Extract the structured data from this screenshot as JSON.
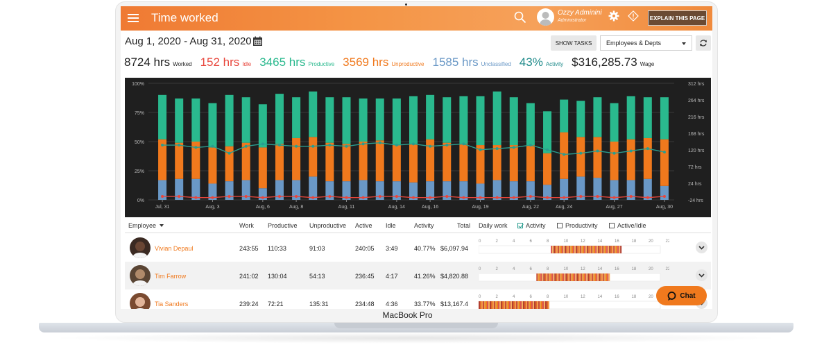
{
  "device_label": "MacBook Pro",
  "header": {
    "title": "Time worked",
    "user_name": "Ozzy Adminini",
    "user_role": "Administrator",
    "explain_label": "EXPLAIN THIS PAGE"
  },
  "toolbar": {
    "date_range": "Aug 1, 2020 - Aug 31, 2020",
    "show_tasks": "SHOW TASKS",
    "group_select": "Employees & Depts"
  },
  "summary": {
    "worked": {
      "value": "8724 hrs",
      "label": "Worked",
      "color": "#222222"
    },
    "idle": {
      "value": "152 hrs",
      "label": "Idle",
      "color": "#e8463c"
    },
    "productive": {
      "value": "3465 hrs",
      "label": "Productive",
      "color": "#2ab98e"
    },
    "unproductive": {
      "value": "3569 hrs",
      "label": "Unproductive",
      "color": "#f0791d"
    },
    "unclassified": {
      "value": "1585 hrs",
      "label": "Unclassified",
      "color": "#6a98c6"
    },
    "activity": {
      "value": "43%",
      "label": "Activity",
      "color": "#1e8a8a"
    },
    "wage": {
      "value": "$316,285.73",
      "label": "Wage",
      "color": "#222222"
    }
  },
  "chart_data": {
    "type": "bar",
    "stacked": true,
    "left_axis": {
      "ticks": [
        "100%",
        "75%",
        "50%",
        "25%",
        "0%"
      ],
      "range": [
        0,
        100
      ]
    },
    "right_axis": {
      "ticks": [
        "312 hrs",
        "264 hrs",
        "216 hrs",
        "168 hrs",
        "120 hrs",
        "72 hrs",
        "24 hrs",
        "-24 hrs"
      ],
      "range": [
        -24,
        312
      ]
    },
    "x_tick_labels": [
      "Jul, 31",
      "Aug, 3",
      "Aug, 6",
      "Aug, 8",
      "Aug, 11",
      "Aug, 14",
      "Aug, 16",
      "Aug, 19",
      "Aug, 22",
      "Aug, 24",
      "Aug, 27",
      "Aug, 30"
    ],
    "series": [
      {
        "name": "Unclassified",
        "color": "#6a98c6",
        "values": [
          17,
          18,
          18,
          14,
          16,
          17,
          10,
          17,
          17,
          20,
          16,
          16,
          17,
          16,
          16,
          15,
          16,
          16,
          16,
          14,
          17,
          16,
          16,
          13,
          18,
          20,
          19,
          17,
          17,
          18,
          12
        ]
      },
      {
        "name": "Unproductive",
        "color": "#f0791d",
        "values": [
          35,
          31,
          32,
          31,
          30,
          32,
          35,
          31,
          36,
          34,
          33,
          32,
          33,
          35,
          31,
          33,
          36,
          33,
          32,
          33,
          30,
          31,
          31,
          27,
          40,
          34,
          35,
          33,
          35,
          35,
          40
        ]
      },
      {
        "name": "Productive",
        "color": "#2ab98e",
        "values": [
          38,
          38,
          37,
          38,
          44,
          39,
          37,
          43,
          35,
          39,
          39,
          40,
          37,
          36,
          40,
          41,
          38,
          39,
          41,
          42,
          46,
          41,
          36,
          36,
          28,
          31,
          34,
          33,
          37,
          35,
          36
        ]
      },
      {
        "name": "Activity",
        "color": "#2a9d8f",
        "type": "line",
        "values": [
          47,
          47,
          45,
          46,
          40,
          46,
          48,
          47,
          46,
          46,
          47,
          46,
          48,
          49,
          47,
          48,
          46,
          47,
          48,
          43,
          44,
          45,
          47,
          43,
          39,
          40,
          42,
          40,
          42,
          44,
          41
        ]
      },
      {
        "name": "Idle",
        "color": "#e8463c",
        "type": "line",
        "values": [
          3,
          3,
          2,
          2,
          3,
          3,
          2,
          3,
          3,
          2,
          3,
          2,
          2,
          3,
          3,
          2,
          2,
          3,
          2,
          2,
          2,
          2,
          3,
          2,
          2,
          3,
          3,
          2,
          3,
          2,
          3
        ]
      }
    ]
  },
  "table": {
    "columns": [
      "Employee",
      "Work",
      "Productive",
      "Unproductive",
      "Active",
      "Idle",
      "Activity",
      "Total",
      "Daily work"
    ],
    "toggles": [
      {
        "label": "Activity",
        "checked": true
      },
      {
        "label": "Productivity",
        "checked": false
      },
      {
        "label": "Active/Idle",
        "checked": false
      }
    ],
    "hour_ticks": [
      "0",
      "2",
      "4",
      "6",
      "8",
      "10",
      "12",
      "14",
      "16",
      "18",
      "20",
      "22"
    ],
    "rows": [
      {
        "name": "Vivian Depaul",
        "work": "243:55",
        "productive": "110:33",
        "unproductive": "91:03",
        "active": "240:05",
        "idle": "3:49",
        "activity": "40.77%",
        "total": "$6,097.94",
        "span": [
          8.5,
          16.8
        ]
      },
      {
        "name": "Tim Farrow",
        "work": "241:02",
        "productive": "130:04",
        "unproductive": "54:13",
        "active": "236:45",
        "idle": "4:17",
        "activity": "41.26%",
        "total": "$4,820.88",
        "span": [
          6.8,
          15.3
        ]
      },
      {
        "name": "Tia Sanders",
        "work": "239:24",
        "productive": "72:21",
        "unproductive": "135:31",
        "active": "234:48",
        "idle": "4:36",
        "activity": "33.77%",
        "total": "$13,167.4",
        "span": [
          0,
          8.3
        ]
      }
    ]
  },
  "chat": {
    "label": "Chat"
  }
}
